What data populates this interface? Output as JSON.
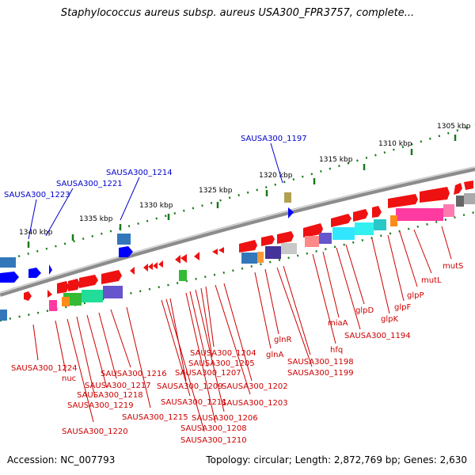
{
  "title": "Staphylococcus aureus subsp. aureus USA300_FPR3757, complete...",
  "accession": "Accession: NC_007793",
  "topology": "Topology: circular; Length: 2,872,769 bp; Genes: 2,630",
  "colors": {
    "backbone": "#8c8c8c",
    "forward_gene": "#ff0000",
    "reverse_gene": "#ff0000",
    "blue_gene": "#0000ff",
    "kbp_tick": "#1a7a1a",
    "blue_label": "#0000cc",
    "red_label": "#cc0000"
  },
  "scale_labels": [
    "1305 kbp",
    "1310 kbp",
    "1315 kbp",
    "1320 kbp",
    "1325 kbp",
    "1330 kbp",
    "1335 kbp",
    "1340 kbp"
  ],
  "blue_labels": [
    "SAUSA300_1197",
    "SAUSA300_1214",
    "SAUSA300_1221",
    "SAUSA300_1223"
  ],
  "red_labels": [
    "mutS",
    "mutL",
    "glpP",
    "glpF",
    "glpK",
    "glpD",
    "miaA",
    "hfq",
    "SAUSA300_1194",
    "glnR",
    "glnA",
    "SAUSA300_1198",
    "SAUSA300_1199",
    "SAUSA300_1202",
    "SAUSA300_1203",
    "SAUSA300_1204",
    "SAUSA300_1205",
    "SAUSA300_1206",
    "SAUSA300_1207",
    "SAUSA300_1208",
    "SAUSA300_1209",
    "SAUSA300_1210",
    "SAUSA300_1211",
    "SAUSA300_1215",
    "SAUSA300_1216",
    "SAUSA300_1217",
    "SAUSA300_1218",
    "SAUSA300_1219",
    "SAUSA300_1220",
    "SAUSA300_1224",
    "nuc"
  ]
}
